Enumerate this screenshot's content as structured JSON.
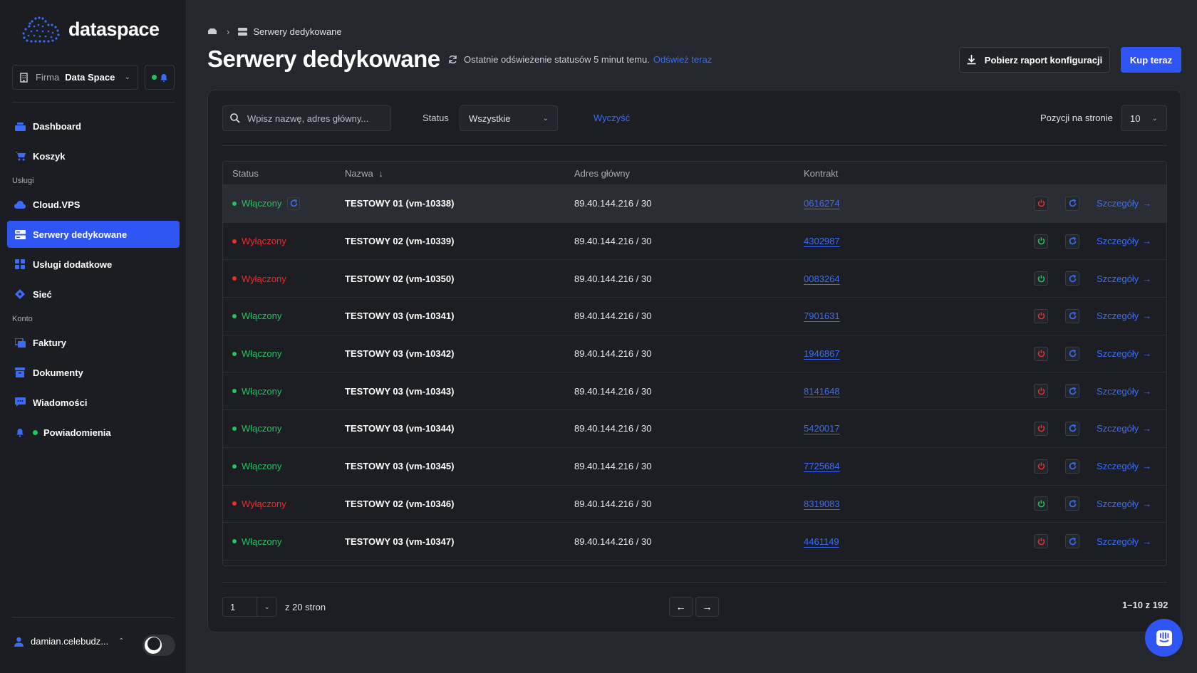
{
  "brand": {
    "name": "dataspace"
  },
  "company": {
    "label": "Firma",
    "value": "Data Space"
  },
  "nav": {
    "main": [
      {
        "label": "Dashboard",
        "icon": "dashboard-icon"
      },
      {
        "label": "Koszyk",
        "icon": "cart-icon"
      }
    ],
    "section_services": "Usługi",
    "services": [
      {
        "label": "Cloud.VPS",
        "icon": "cloud-icon"
      },
      {
        "label": "Serwery dedykowane",
        "icon": "server-icon",
        "active": true
      },
      {
        "label": "Usługi dodatkowe",
        "icon": "grid-icon"
      },
      {
        "label": "Sieć",
        "icon": "network-icon"
      }
    ],
    "section_account": "Konto",
    "account": [
      {
        "label": "Faktury",
        "icon": "invoice-icon"
      },
      {
        "label": "Dokumenty",
        "icon": "archive-icon"
      },
      {
        "label": "Wiadomości",
        "icon": "message-icon"
      },
      {
        "label": "Powiadomienia",
        "icon": "bell-icon"
      }
    ]
  },
  "user": {
    "name": "damian.celebudz..."
  },
  "breadcrumb": {
    "current": "Serwery dedykowane"
  },
  "header": {
    "title": "Serwery dedykowane",
    "refresh_text": "Ostatnie odświeżenie statusów 5 minut temu.",
    "refresh_link": "Odśwież teraz",
    "report_button": "Pobierz raport konfiguracji",
    "buy_button": "Kup teraz"
  },
  "filters": {
    "search_placeholder": "Wpisz nazwę, adres główny...",
    "status_label": "Status",
    "status_value": "Wszystkie",
    "clear": "Wyczyść",
    "per_page_label": "Pozycji na stronie",
    "per_page_value": "10"
  },
  "table": {
    "columns": {
      "status": "Status",
      "name": "Nazwa",
      "address": "Adres główny",
      "contract": "Kontrakt"
    },
    "details_label": "Szczegóły",
    "rows": [
      {
        "status": "Włączony",
        "on": true,
        "name": "TESTOWY 01 (vm-10338)",
        "address": "89.40.144.216 / 30",
        "contract": "0616274",
        "refreshing": true
      },
      {
        "status": "Wyłączony",
        "on": false,
        "name": "TESTOWY 02 (vm-10339)",
        "address": "89.40.144.216 / 30",
        "contract": "4302987"
      },
      {
        "status": "Wyłączony",
        "on": false,
        "name": "TESTOWY 02 (vm-10350)",
        "address": "89.40.144.216 / 30",
        "contract": "0083264"
      },
      {
        "status": "Włączony",
        "on": true,
        "name": "TESTOWY 03 (vm-10341)",
        "address": "89.40.144.216 / 30",
        "contract": "7901631"
      },
      {
        "status": "Włączony",
        "on": true,
        "name": "TESTOWY 03 (vm-10342)",
        "address": "89.40.144.216 / 30",
        "contract": "1946867"
      },
      {
        "status": "Włączony",
        "on": true,
        "name": "TESTOWY 03 (vm-10343)",
        "address": "89.40.144.216 / 30",
        "contract": "8141648"
      },
      {
        "status": "Włączony",
        "on": true,
        "name": "TESTOWY 03 (vm-10344)",
        "address": "89.40.144.216 / 30",
        "contract": "5420017"
      },
      {
        "status": "Włączony",
        "on": true,
        "name": "TESTOWY 03 (vm-10345)",
        "address": "89.40.144.216 / 30",
        "contract": "7725684"
      },
      {
        "status": "Wyłączony",
        "on": false,
        "name": "TESTOWY 02 (vm-10346)",
        "address": "89.40.144.216 / 30",
        "contract": "8319083"
      },
      {
        "status": "Włączony",
        "on": true,
        "name": "TESTOWY 03 (vm-10347)",
        "address": "89.40.144.216 / 30",
        "contract": "4461149"
      }
    ]
  },
  "pagination": {
    "page": "1",
    "of_pages": "z 20 stron",
    "range": "1–10 z 192"
  },
  "colors": {
    "accent": "#2f55f5",
    "link": "#3b6cf7",
    "on": "#22c55e",
    "off": "#ef2b2b"
  }
}
